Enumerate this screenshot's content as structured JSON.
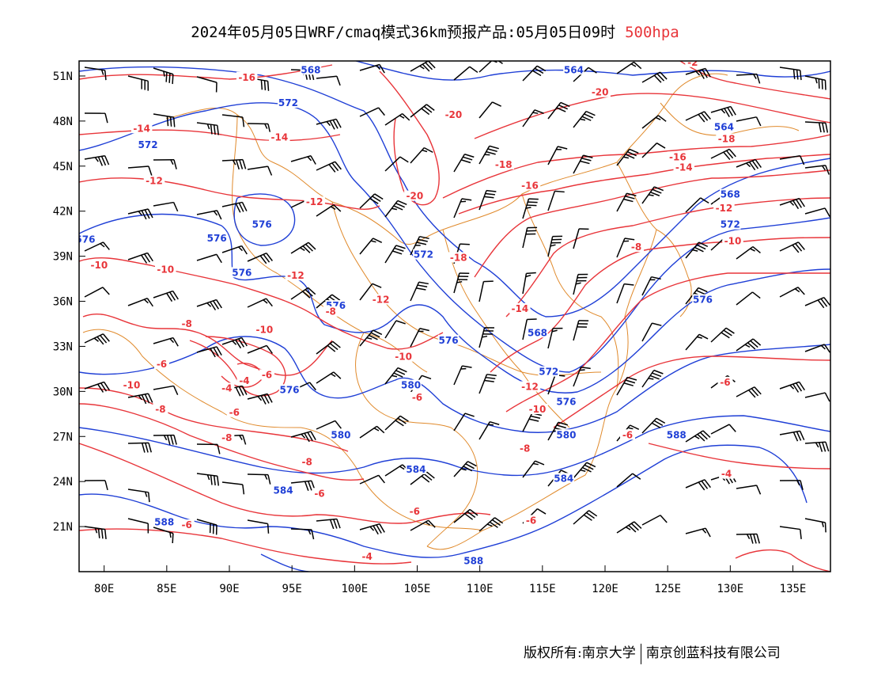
{
  "title": {
    "main": "2024年05月05日WRF/cmaq模式36km预报产品:05月05日09时",
    "level": "500hpa",
    "level_color": "#e8353a"
  },
  "map": {
    "lon_range": [
      78,
      138
    ],
    "lat_range": [
      18,
      52
    ],
    "lon_ticks": [
      {
        "value": 80,
        "label": "80E"
      },
      {
        "value": 85,
        "label": "85E"
      },
      {
        "value": 90,
        "label": "90E"
      },
      {
        "value": 95,
        "label": "95E"
      },
      {
        "value": 100,
        "label": "100E"
      },
      {
        "value": 105,
        "label": "105E"
      },
      {
        "value": 110,
        "label": "110E"
      },
      {
        "value": 115,
        "label": "115E"
      },
      {
        "value": 120,
        "label": "120E"
      },
      {
        "value": 125,
        "label": "125E"
      },
      {
        "value": 130,
        "label": "130E"
      },
      {
        "value": 135,
        "label": "135E"
      }
    ],
    "lat_ticks": [
      {
        "value": 51,
        "label": "51N"
      },
      {
        "value": 48,
        "label": "48N"
      },
      {
        "value": 45,
        "label": "45N"
      },
      {
        "value": 42,
        "label": "42N"
      },
      {
        "value": 39,
        "label": "39N"
      },
      {
        "value": 36,
        "label": "36N"
      },
      {
        "value": 33,
        "label": "33N"
      },
      {
        "value": 30,
        "label": "30N"
      },
      {
        "value": 27,
        "label": "27N"
      },
      {
        "value": 24,
        "label": "24N"
      },
      {
        "value": 21,
        "label": "21N"
      }
    ],
    "colors": {
      "height_contour": "#1f3fd6",
      "temperature_contour": "#e8353a",
      "boundary": "#e08a2c",
      "wind_barb": "#000000"
    },
    "height_labels": [
      {
        "text": "568",
        "lon": 96.5,
        "lat": 51.3
      },
      {
        "text": "564",
        "lon": 117.5,
        "lat": 51.3
      },
      {
        "text": "572",
        "lon": 94.7,
        "lat": 49.1
      },
      {
        "text": "572",
        "lon": 83.5,
        "lat": 46.3
      },
      {
        "text": "576",
        "lon": 92.6,
        "lat": 41.0
      },
      {
        "text": "576",
        "lon": 89.0,
        "lat": 40.1
      },
      {
        "text": "576",
        "lon": 91.0,
        "lat": 37.8
      },
      {
        "text": "576",
        "lon": 78.5,
        "lat": 40.0
      },
      {
        "text": "572",
        "lon": 105.5,
        "lat": 39.0
      },
      {
        "text": "576",
        "lon": 98.5,
        "lat": 35.6
      },
      {
        "text": "576",
        "lon": 107.5,
        "lat": 33.3
      },
      {
        "text": "568",
        "lon": 114.6,
        "lat": 33.8
      },
      {
        "text": "572",
        "lon": 115.5,
        "lat": 31.2
      },
      {
        "text": "580",
        "lon": 104.5,
        "lat": 30.3
      },
      {
        "text": "576",
        "lon": 94.8,
        "lat": 30.0
      },
      {
        "text": "576",
        "lon": 116.9,
        "lat": 29.2
      },
      {
        "text": "580",
        "lon": 98.9,
        "lat": 27.0
      },
      {
        "text": "580",
        "lon": 116.9,
        "lat": 27.0
      },
      {
        "text": "584",
        "lon": 104.9,
        "lat": 24.7
      },
      {
        "text": "584",
        "lon": 94.3,
        "lat": 23.3
      },
      {
        "text": "584",
        "lon": 116.7,
        "lat": 24.1
      },
      {
        "text": "588",
        "lon": 84.8,
        "lat": 21.2
      },
      {
        "text": "588",
        "lon": 109.5,
        "lat": 18.6
      },
      {
        "text": "588",
        "lon": 125.7,
        "lat": 27.0
      },
      {
        "text": "572",
        "lon": 130.0,
        "lat": 41.0
      },
      {
        "text": "568",
        "lon": 130.0,
        "lat": 43.0
      },
      {
        "text": "576",
        "lon": 127.8,
        "lat": 36.0
      },
      {
        "text": "564",
        "lon": 129.5,
        "lat": 47.5
      }
    ],
    "temperature_labels": [
      {
        "text": "-16",
        "lon": 91.4,
        "lat": 50.8
      },
      {
        "text": "-14",
        "lon": 83.0,
        "lat": 47.4
      },
      {
        "text": "-14",
        "lon": 94.0,
        "lat": 46.8
      },
      {
        "text": "-12",
        "lon": 84.0,
        "lat": 43.9
      },
      {
        "text": "-12",
        "lon": 96.8,
        "lat": 42.5
      },
      {
        "text": "-12",
        "lon": 95.3,
        "lat": 37.6
      },
      {
        "text": "-10",
        "lon": 79.6,
        "lat": 38.3
      },
      {
        "text": "-10",
        "lon": 84.9,
        "lat": 38.0
      },
      {
        "text": "-8",
        "lon": 86.6,
        "lat": 34.4
      },
      {
        "text": "-10",
        "lon": 92.8,
        "lat": 34.0
      },
      {
        "text": "-12",
        "lon": 102.1,
        "lat": 36.0
      },
      {
        "text": "-10",
        "lon": 103.9,
        "lat": 32.2
      },
      {
        "text": "-8",
        "lon": 98.1,
        "lat": 35.2
      },
      {
        "text": "-6",
        "lon": 84.6,
        "lat": 31.7
      },
      {
        "text": "-4",
        "lon": 91.2,
        "lat": 30.6
      },
      {
        "text": "-6",
        "lon": 93.0,
        "lat": 31.0
      },
      {
        "text": "-4",
        "lon": 89.8,
        "lat": 30.1
      },
      {
        "text": "-10",
        "lon": 82.2,
        "lat": 30.3
      },
      {
        "text": "-8",
        "lon": 84.5,
        "lat": 28.7
      },
      {
        "text": "-6",
        "lon": 90.4,
        "lat": 28.5
      },
      {
        "text": "-8",
        "lon": 89.8,
        "lat": 26.8
      },
      {
        "text": "-8",
        "lon": 96.2,
        "lat": 25.2
      },
      {
        "text": "-6",
        "lon": 97.2,
        "lat": 23.1
      },
      {
        "text": "-6",
        "lon": 86.6,
        "lat": 21.0
      },
      {
        "text": "-6",
        "lon": 105.0,
        "lat": 29.5
      },
      {
        "text": "-6",
        "lon": 104.8,
        "lat": 21.9
      },
      {
        "text": "-4",
        "lon": 101.0,
        "lat": 18.9
      },
      {
        "text": "-20",
        "lon": 107.9,
        "lat": 48.3
      },
      {
        "text": "-20",
        "lon": 119.6,
        "lat": 49.8
      },
      {
        "text": "-20",
        "lon": 104.8,
        "lat": 42.9
      },
      {
        "text": "-18",
        "lon": 111.9,
        "lat": 45.0
      },
      {
        "text": "-18",
        "lon": 108.3,
        "lat": 38.8
      },
      {
        "text": "-16",
        "lon": 114.0,
        "lat": 43.6
      },
      {
        "text": "-16",
        "lon": 125.8,
        "lat": 45.5
      },
      {
        "text": "-14",
        "lon": 126.3,
        "lat": 44.8
      },
      {
        "text": "-14",
        "lon": 113.2,
        "lat": 35.4
      },
      {
        "text": "-12",
        "lon": 114.0,
        "lat": 30.2
      },
      {
        "text": "-10",
        "lon": 114.6,
        "lat": 28.7
      },
      {
        "text": "-8",
        "lon": 113.6,
        "lat": 26.1
      },
      {
        "text": "-6",
        "lon": 114.1,
        "lat": 21.3
      },
      {
        "text": "-6",
        "lon": 121.8,
        "lat": 27.0
      },
      {
        "text": "-8",
        "lon": 122.5,
        "lat": 39.5
      },
      {
        "text": "-12",
        "lon": 129.5,
        "lat": 42.1
      },
      {
        "text": "-10",
        "lon": 130.2,
        "lat": 39.9
      },
      {
        "text": "-18",
        "lon": 129.7,
        "lat": 46.7
      },
      {
        "text": "-6",
        "lon": 129.6,
        "lat": 30.5
      },
      {
        "text": "-4",
        "lon": 129.7,
        "lat": 24.4
      },
      {
        "text": "-2",
        "lon": 127.0,
        "lat": 51.8
      }
    ]
  },
  "footer": {
    "left": "版权所有:南京大学",
    "right": "南京创蓝科技有限公司"
  }
}
